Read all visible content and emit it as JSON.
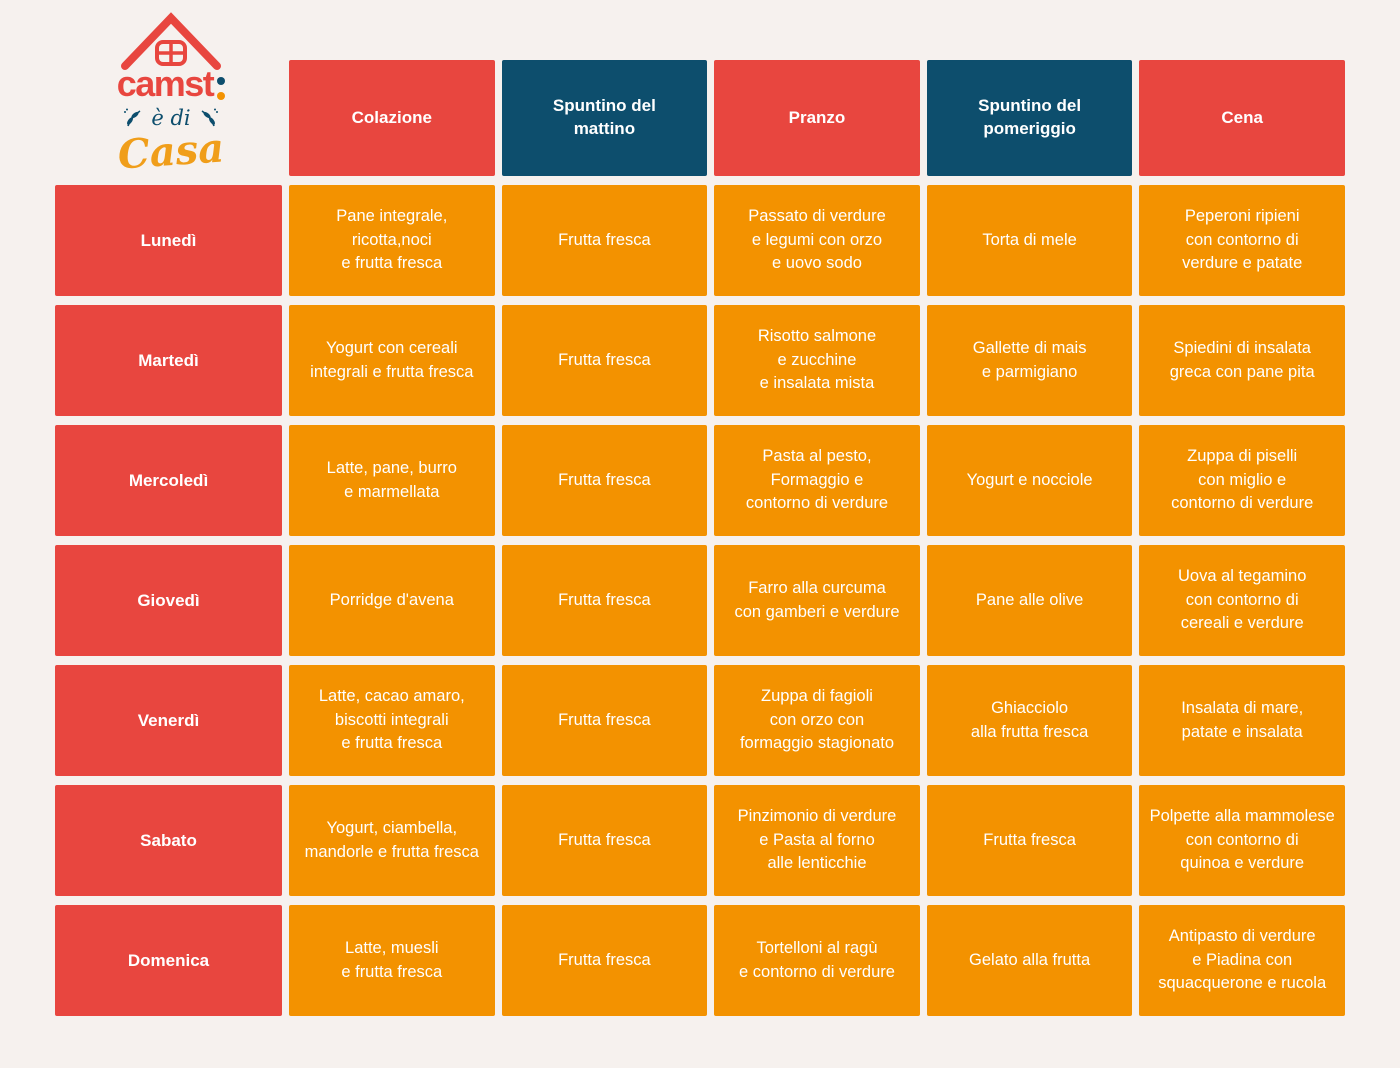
{
  "colors": {
    "red": "#E8463F",
    "blue": "#0D4E6D",
    "orange": "#F39200",
    "background": "#F6F1EE",
    "text": "#FFFFFF"
  },
  "logo": {
    "brand": "camst",
    "tagline_line1": "è di",
    "tagline_line2": "Casa"
  },
  "table": {
    "columns": [
      {
        "label": "Colazione",
        "color": "red"
      },
      {
        "label": "Spuntino del\nmattino",
        "color": "blue"
      },
      {
        "label": "Pranzo",
        "color": "red"
      },
      {
        "label": "Spuntino del\npomeriggio",
        "color": "blue"
      },
      {
        "label": "Cena",
        "color": "red"
      }
    ],
    "rows": [
      {
        "day": "Lunedì",
        "cells": [
          "Pane integrale,\nricotta,noci\ne frutta fresca",
          "Frutta fresca",
          "Passato di verdure\ne legumi con orzo\ne uovo sodo",
          "Torta di mele",
          "Peperoni ripieni\ncon contorno di\nverdure e patate"
        ]
      },
      {
        "day": "Martedì",
        "cells": [
          "Yogurt con cereali\nintegrali e frutta fresca",
          "Frutta fresca",
          "Risotto salmone\ne zucchine\ne insalata mista",
          "Gallette di mais\ne parmigiano",
          "Spiedini di insalata\ngreca con pane pita"
        ]
      },
      {
        "day": "Mercoledì",
        "cells": [
          "Latte, pane, burro\ne marmellata",
          "Frutta fresca",
          "Pasta al pesto,\nFormaggio e\ncontorno di verdure",
          "Yogurt e nocciole",
          "Zuppa di piselli\ncon miglio e\ncontorno di verdure"
        ]
      },
      {
        "day": "Giovedì",
        "cells": [
          "Porridge d'avena",
          "Frutta fresca",
          "Farro alla curcuma\ncon gamberi e verdure",
          "Pane alle olive",
          "Uova al tegamino\ncon contorno di\ncereali e verdure"
        ]
      },
      {
        "day": "Venerdì",
        "cells": [
          "Latte, cacao amaro,\nbiscotti integrali\ne frutta fresca",
          "Frutta fresca",
          "Zuppa di fagioli\ncon orzo con\nformaggio stagionato",
          "Ghiacciolo\nalla frutta fresca",
          "Insalata di mare,\npatate e insalata"
        ]
      },
      {
        "day": "Sabato",
        "cells": [
          "Yogurt, ciambella,\nmandorle e frutta fresca",
          "Frutta fresca",
          "Pinzimonio di verdure\ne Pasta al forno\nalle lenticchie",
          "Frutta fresca",
          "Polpette alla mammolese\ncon contorno di\nquinoa e verdure"
        ]
      },
      {
        "day": "Domenica",
        "cells": [
          "Latte, muesli\ne frutta fresca",
          "Frutta fresca",
          "Tortelloni al ragù\ne contorno di verdure",
          "Gelato alla frutta",
          "Antipasto di verdure\ne Piadina con\nsquacquerone e rucola"
        ]
      }
    ]
  }
}
